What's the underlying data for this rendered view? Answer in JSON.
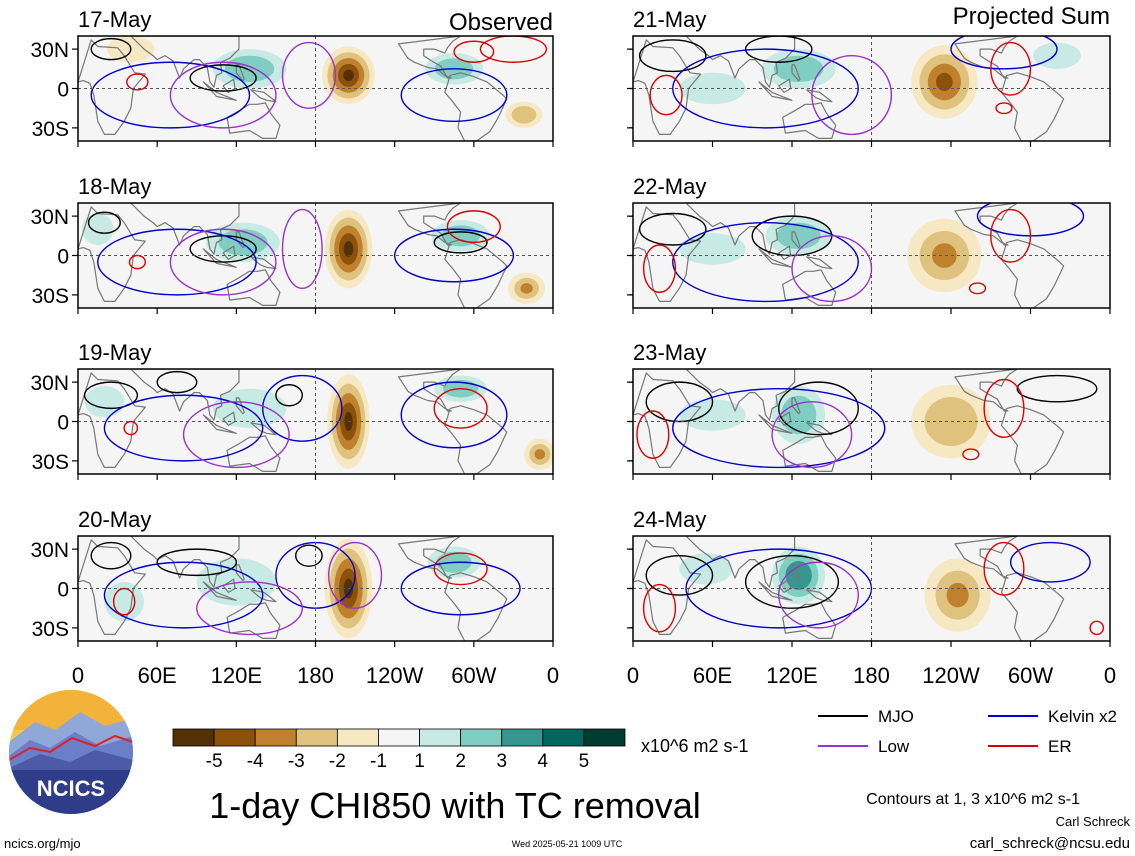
{
  "header": {
    "left_title": "Observed",
    "right_title": "Projected Sum"
  },
  "panels": [
    {
      "date": "17-May",
      "column": "left",
      "row": 0
    },
    {
      "date": "18-May",
      "column": "left",
      "row": 1
    },
    {
      "date": "19-May",
      "column": "left",
      "row": 2
    },
    {
      "date": "20-May",
      "column": "left",
      "row": 3
    },
    {
      "date": "21-May",
      "column": "right",
      "row": 0
    },
    {
      "date": "22-May",
      "column": "right",
      "row": 1
    },
    {
      "date": "23-May",
      "column": "right",
      "row": 2
    },
    {
      "date": "24-May",
      "column": "right",
      "row": 3
    }
  ],
  "axes": {
    "lat_labels": [
      "30N",
      "0",
      "30S"
    ],
    "lon_labels": [
      "0",
      "60E",
      "120E",
      "180",
      "120W",
      "60W",
      "0"
    ]
  },
  "colorbar": {
    "tick_labels": [
      "-5",
      "-4",
      "-3",
      "-2",
      "-1",
      "1",
      "2",
      "3",
      "4",
      "5"
    ],
    "colors": [
      "#543005",
      "#8c510a",
      "#bf812d",
      "#dfc27d",
      "#f6e8c3",
      "#f5f5f5",
      "#c7eae5",
      "#80cdc1",
      "#35978f",
      "#01665e",
      "#003c30"
    ],
    "units": "x10^6 m2 s-1"
  },
  "legend": {
    "items": [
      {
        "label": "MJO",
        "color": "#000000"
      },
      {
        "label": "Kelvin x2",
        "color": "#0000cc"
      },
      {
        "label": "Low",
        "color": "#9a32cd"
      },
      {
        "label": "ER",
        "color": "#dd0000"
      }
    ],
    "contours_note": "Contours at 1, 3 x10^6 m2 s-1"
  },
  "footer": {
    "main_title": "1-day CHI850 with TC removal",
    "logo_text": "NCICS",
    "url": "ncics.org/mjo",
    "timestamp": "Wed 2025-05-21 1009 UTC",
    "author": "Carl Schreck",
    "email": "carl_schreck@ncsu.edu"
  },
  "chart_data": {
    "type": "heatmap",
    "variable": "1-day CHI850 with TC removal",
    "units": "x10^6 m2 s-1",
    "x_axis": {
      "labels": [
        "0",
        "60E",
        "120E",
        "180",
        "120W",
        "60W",
        "0"
      ],
      "range_deg": [
        0,
        360
      ]
    },
    "y_axis": {
      "labels": [
        "30N",
        "0",
        "30S"
      ],
      "range_deg": [
        -40,
        40
      ]
    },
    "color_levels": [
      -5,
      -4,
      -3,
      -2,
      -1,
      1,
      2,
      3,
      4,
      5
    ],
    "contour_levels": [
      1,
      3
    ],
    "series": [
      {
        "name": "Observed",
        "dates": [
          "17-May",
          "18-May",
          "19-May",
          "20-May"
        ]
      },
      {
        "name": "Projected Sum",
        "dates": [
          "21-May",
          "22-May",
          "23-May",
          "24-May"
        ]
      }
    ],
    "blobs": [
      {
        "panel": 0,
        "lon": 205,
        "lat": 10,
        "value": -5,
        "rx": 20,
        "ry": 22
      },
      {
        "panel": 0,
        "lon": 130,
        "lat": 15,
        "value": 2.5,
        "rx": 28,
        "ry": 15
      },
      {
        "panel": 0,
        "lon": 285,
        "lat": 15,
        "value": 2.5,
        "rx": 22,
        "ry": 12
      },
      {
        "panel": 0,
        "lon": 338,
        "lat": -20,
        "value": -2.5,
        "rx": 14,
        "ry": 10
      },
      {
        "panel": 0,
        "lon": 40,
        "lat": 30,
        "value": -1.5,
        "rx": 18,
        "ry": 10
      },
      {
        "panel": 1,
        "lon": 205,
        "lat": 5,
        "value": -5,
        "rx": 18,
        "ry": 30
      },
      {
        "panel": 1,
        "lon": 125,
        "lat": 10,
        "value": 2.5,
        "rx": 28,
        "ry": 15
      },
      {
        "panel": 1,
        "lon": 290,
        "lat": 15,
        "value": 2.5,
        "rx": 22,
        "ry": 12
      },
      {
        "panel": 1,
        "lon": 340,
        "lat": -25,
        "value": -3,
        "rx": 14,
        "ry": 12
      },
      {
        "panel": 1,
        "lon": 15,
        "lat": 20,
        "value": 1.5,
        "rx": 12,
        "ry": 12
      },
      {
        "panel": 2,
        "lon": 205,
        "lat": 0,
        "value": -5,
        "rx": 16,
        "ry": 36
      },
      {
        "panel": 2,
        "lon": 130,
        "lat": 10,
        "value": 2,
        "rx": 28,
        "ry": 15
      },
      {
        "panel": 2,
        "lon": 290,
        "lat": 25,
        "value": 3,
        "rx": 20,
        "ry": 10
      },
      {
        "panel": 2,
        "lon": 350,
        "lat": -25,
        "value": -3,
        "rx": 12,
        "ry": 12
      },
      {
        "panel": 2,
        "lon": 20,
        "lat": 15,
        "value": 1.5,
        "rx": 15,
        "ry": 12
      },
      {
        "panel": 3,
        "lon": 205,
        "lat": 0,
        "value": -5,
        "rx": 18,
        "ry": 38
      },
      {
        "panel": 3,
        "lon": 120,
        "lat": 5,
        "value": 2,
        "rx": 30,
        "ry": 18
      },
      {
        "panel": 3,
        "lon": 285,
        "lat": 20,
        "value": 2.5,
        "rx": 20,
        "ry": 12
      },
      {
        "panel": 3,
        "lon": 35,
        "lat": -10,
        "value": 2,
        "rx": 15,
        "ry": 15
      },
      {
        "panel": 4,
        "lon": 235,
        "lat": 5,
        "value": -4,
        "rx": 25,
        "ry": 28
      },
      {
        "panel": 4,
        "lon": 125,
        "lat": 15,
        "value": 2.5,
        "rx": 28,
        "ry": 15
      },
      {
        "panel": 4,
        "lon": 60,
        "lat": 0,
        "value": 1.5,
        "rx": 25,
        "ry": 12
      },
      {
        "panel": 4,
        "lon": 320,
        "lat": 25,
        "value": 1.5,
        "rx": 18,
        "ry": 10
      },
      {
        "panel": 5,
        "lon": 235,
        "lat": 0,
        "value": -3,
        "rx": 28,
        "ry": 28
      },
      {
        "panel": 5,
        "lon": 125,
        "lat": 15,
        "value": 2.5,
        "rx": 25,
        "ry": 15
      },
      {
        "panel": 5,
        "lon": 60,
        "lat": 5,
        "value": 1.5,
        "rx": 25,
        "ry": 12
      },
      {
        "panel": 6,
        "lon": 240,
        "lat": 0,
        "value": -2.5,
        "rx": 30,
        "ry": 28
      },
      {
        "panel": 6,
        "lon": 125,
        "lat": 5,
        "value": 3,
        "rx": 20,
        "ry": 22
      },
      {
        "panel": 6,
        "lon": 60,
        "lat": 5,
        "value": 1.5,
        "rx": 25,
        "ry": 12
      },
      {
        "panel": 7,
        "lon": 245,
        "lat": -5,
        "value": -3,
        "rx": 25,
        "ry": 28
      },
      {
        "panel": 7,
        "lon": 125,
        "lat": 10,
        "value": 3.5,
        "rx": 20,
        "ry": 22
      },
      {
        "panel": 7,
        "lon": 55,
        "lat": 15,
        "value": 1.5,
        "rx": 20,
        "ry": 12
      }
    ]
  }
}
